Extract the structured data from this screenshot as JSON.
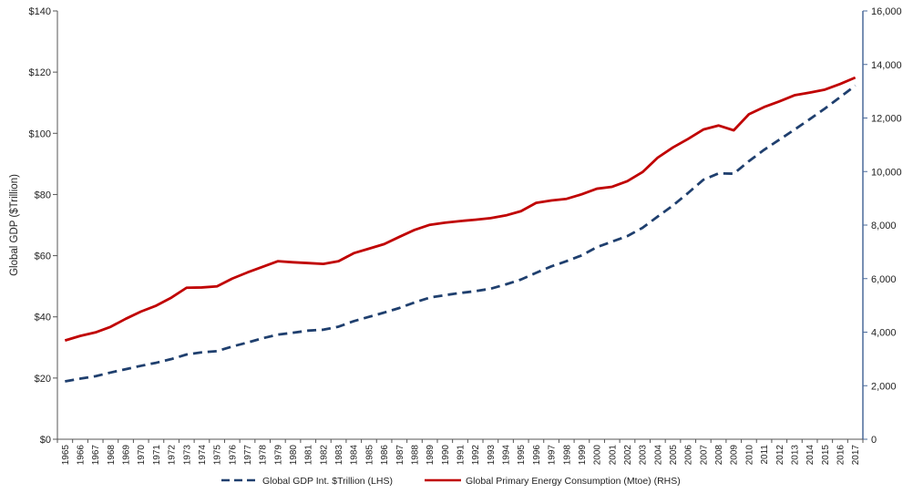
{
  "chart_data": {
    "type": "line",
    "title": "",
    "ylabel": "Global GDP ($Trillion)",
    "y2label": "",
    "ylim": [
      0,
      140
    ],
    "y2lim": [
      0,
      16000
    ],
    "y_ticks": [
      "$0",
      "$20",
      "$40",
      "$60",
      "$80",
      "$100",
      "$120",
      "$140"
    ],
    "y2_ticks": [
      "0",
      "2,000",
      "4,000",
      "6,000",
      "8,000",
      "10,000",
      "12,000",
      "14,000",
      "16,000"
    ],
    "x": [
      "1965",
      "1966",
      "1967",
      "1968",
      "1969",
      "1970",
      "1971",
      "1972",
      "1973",
      "1974",
      "1975",
      "1976",
      "1977",
      "1978",
      "1979",
      "1980",
      "1981",
      "1982",
      "1983",
      "1984",
      "1985",
      "1986",
      "1987",
      "1988",
      "1989",
      "1990",
      "1991",
      "1992",
      "1993",
      "1994",
      "1995",
      "1996",
      "1997",
      "1998",
      "1999",
      "2000",
      "2001",
      "2002",
      "2003",
      "2004",
      "2005",
      "2006",
      "2007",
      "2008",
      "2009",
      "2010",
      "2011",
      "2012",
      "2013",
      "2014",
      "2015",
      "2016",
      "2017"
    ],
    "grid": false,
    "legend_position": "bottom",
    "series": [
      {
        "name": "Global GDP Int. $Trillion (LHS)",
        "axis": "left",
        "color": "#1f3f6e",
        "style": "dashed",
        "values": [
          18.9,
          19.8,
          20.6,
          21.8,
          22.9,
          24.0,
          25.0,
          26.2,
          27.7,
          28.4,
          28.8,
          30.3,
          31.6,
          33.0,
          34.2,
          34.8,
          35.5,
          35.8,
          36.8,
          38.6,
          40.0,
          41.4,
          42.9,
          44.7,
          46.3,
          47.1,
          47.8,
          48.4,
          49.2,
          50.6,
          52.2,
          54.4,
          56.5,
          58.2,
          60.1,
          62.8,
          64.6,
          66.4,
          69.1,
          72.8,
          76.4,
          80.5,
          84.8,
          86.9,
          86.8,
          90.9,
          94.6,
          97.9,
          101.2,
          104.6,
          108.1,
          111.8,
          115.6
        ]
      },
      {
        "name": "Global Primary Energy Consumption (Mtoe) (RHS)",
        "axis": "right",
        "color": "#c00000",
        "style": "solid",
        "values": [
          3690,
          3860,
          3990,
          4200,
          4500,
          4770,
          4990,
          5290,
          5660,
          5670,
          5710,
          6000,
          6230,
          6440,
          6650,
          6610,
          6580,
          6550,
          6650,
          6950,
          7120,
          7290,
          7560,
          7820,
          8010,
          8090,
          8150,
          8200,
          8260,
          8360,
          8520,
          8830,
          8920,
          8980,
          9150,
          9360,
          9430,
          9640,
          9980,
          10520,
          10900,
          11220,
          11570,
          11720,
          11540,
          12140,
          12410,
          12620,
          12850,
          12950,
          13060,
          13270,
          13510
        ]
      }
    ]
  }
}
